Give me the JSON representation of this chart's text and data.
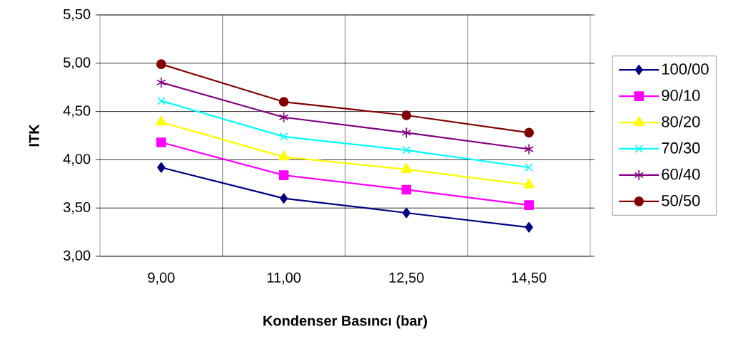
{
  "chart_data": {
    "type": "line",
    "xlabel": "Kondenser Basıncı (bar)",
    "ylabel": "ITK",
    "categories": [
      "9,00",
      "11,00",
      "12,50",
      "14,50"
    ],
    "series": [
      {
        "name": "100/00",
        "color": "#000080",
        "marker": "diamond",
        "values": [
          3.92,
          3.6,
          3.45,
          3.3
        ]
      },
      {
        "name": "90/10",
        "color": "#ff00ff",
        "marker": "square",
        "values": [
          4.18,
          3.84,
          3.69,
          3.53
        ]
      },
      {
        "name": "80/20",
        "color": "#ffff00",
        "marker": "triangle",
        "values": [
          4.39,
          4.03,
          3.9,
          3.74
        ]
      },
      {
        "name": "70/30",
        "color": "#00ffff",
        "marker": "cross",
        "values": [
          4.61,
          4.24,
          4.1,
          3.92
        ]
      },
      {
        "name": "60/40",
        "color": "#800080",
        "marker": "cross",
        "values": [
          4.8,
          4.44,
          4.28,
          4.11
        ]
      },
      {
        "name": "50/50",
        "color": "#800000",
        "marker": "circle",
        "values": [
          4.99,
          4.6,
          4.46,
          4.28
        ]
      }
    ],
    "ylim": [
      3.0,
      5.5
    ],
    "yticks": [
      {
        "value": 3.0,
        "label": "3,00"
      },
      {
        "value": 3.5,
        "label": "3,50"
      },
      {
        "value": 4.0,
        "label": "4,00"
      },
      {
        "value": 4.5,
        "label": "4,50"
      },
      {
        "value": 5.0,
        "label": "5,00"
      },
      {
        "value": 5.5,
        "label": "5,50"
      }
    ],
    "grid": true,
    "legend": "right",
    "line_style": "solid"
  }
}
